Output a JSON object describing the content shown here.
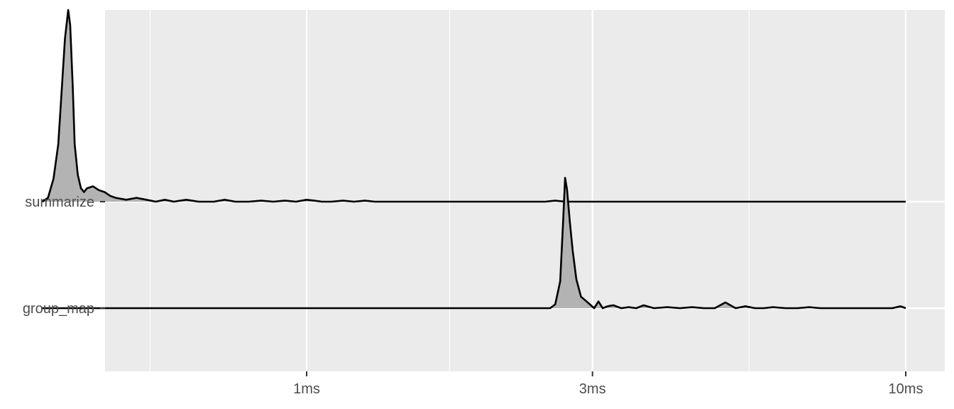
{
  "chart_data": {
    "type": "ridgeline-density",
    "x_scale": "log10",
    "x_unit": "ms",
    "xlim": [
      0.3,
      10
    ],
    "x_ticks": [
      {
        "value": 1,
        "label": "1ms"
      },
      {
        "value": 3,
        "label": "3ms"
      },
      {
        "value": 10,
        "label": "10ms"
      }
    ],
    "categories": [
      "summarize",
      "group_map"
    ],
    "grid": true,
    "panel_background": "#ebebeb",
    "fill_color": "#b3b3b3",
    "line_color": "#000000",
    "series": [
      {
        "name": "summarize",
        "x": [
          0.362,
          0.37,
          0.378,
          0.385,
          0.39,
          0.395,
          0.4,
          0.403,
          0.407,
          0.41,
          0.415,
          0.42,
          0.425,
          0.43,
          0.44,
          0.45,
          0.46,
          0.47,
          0.48,
          0.5,
          0.52,
          0.54,
          0.56,
          0.58,
          0.6,
          0.63,
          0.66,
          0.7,
          0.73,
          0.76,
          0.8,
          0.84,
          0.88,
          0.92,
          0.96,
          1.0,
          1.03,
          1.06,
          1.1,
          1.15,
          1.2,
          1.25,
          1.3,
          2.5,
          2.6,
          2.7,
          10
        ],
        "density": [
          0.0,
          0.02,
          0.12,
          0.3,
          0.58,
          0.85,
          1.0,
          0.92,
          0.6,
          0.3,
          0.14,
          0.07,
          0.05,
          0.07,
          0.08,
          0.06,
          0.05,
          0.03,
          0.02,
          0.01,
          0.02,
          0.01,
          0.0,
          0.01,
          0.0,
          0.01,
          0.0,
          0.0,
          0.01,
          0.0,
          0.0,
          0.005,
          0.0,
          0.005,
          0.0,
          0.01,
          0.005,
          0.0,
          0.0,
          0.005,
          0.0,
          0.005,
          0.0,
          0.0,
          0.005,
          0.0,
          0.0
        ]
      },
      {
        "name": "group_map",
        "x": [
          0.362,
          2.55,
          2.6,
          2.65,
          2.68,
          2.7,
          2.72,
          2.75,
          2.78,
          2.82,
          2.87,
          2.92,
          2.97,
          3.02,
          3.07,
          3.12,
          3.18,
          3.25,
          3.35,
          3.45,
          3.55,
          3.65,
          3.8,
          4.0,
          4.2,
          4.4,
          4.6,
          4.8,
          5.0,
          5.2,
          5.4,
          5.6,
          5.8,
          6.0,
          6.3,
          6.6,
          6.9,
          7.2,
          7.6,
          8.0,
          8.5,
          9.0,
          9.5,
          9.8,
          10.0
        ],
        "density": [
          0.0,
          0.0,
          0.02,
          0.14,
          0.45,
          0.68,
          0.62,
          0.45,
          0.3,
          0.15,
          0.06,
          0.04,
          0.02,
          0.0,
          0.035,
          0.0,
          0.01,
          0.015,
          0.0,
          0.005,
          0.0,
          0.015,
          0.0,
          0.005,
          0.0,
          0.005,
          0.0,
          0.0,
          0.03,
          0.0,
          0.01,
          0.0,
          0.0,
          0.005,
          0.0,
          0.0,
          0.005,
          0.0,
          0.0,
          0.0,
          0.0,
          0.0,
          0.0,
          0.01,
          0.0
        ]
      }
    ]
  }
}
